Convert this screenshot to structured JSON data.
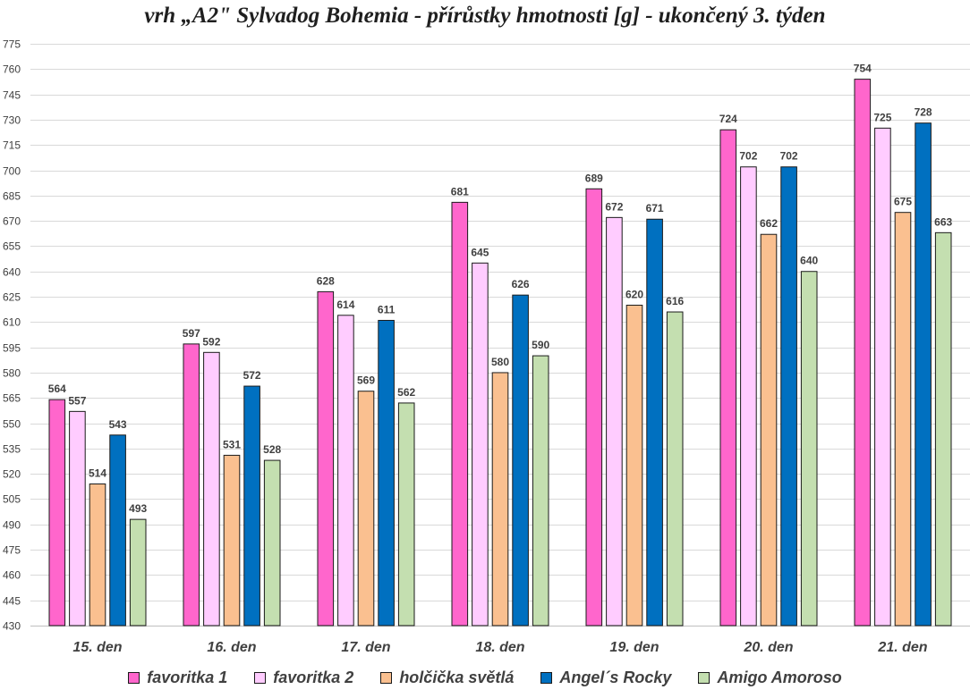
{
  "chart_data": {
    "type": "bar",
    "title": "vrh „A2\" Sylvadog Bohemia - přírůstky hmotnosti [g] - ukončený 3. týden",
    "xlabel": "",
    "ylabel": "",
    "categories": [
      "15. den",
      "16. den",
      "17. den",
      "18. den",
      "19. den",
      "20. den",
      "21. den"
    ],
    "ylim": [
      430,
      775
    ],
    "yticks": [
      430,
      445,
      460,
      475,
      490,
      505,
      520,
      535,
      550,
      565,
      580,
      595,
      610,
      625,
      640,
      655,
      670,
      685,
      700,
      715,
      730,
      745,
      760,
      775
    ],
    "grid": true,
    "legend_position": "bottom",
    "series": [
      {
        "name": "favoritka 1",
        "color": "#ff66cc",
        "values": [
          564,
          597,
          628,
          681,
          689,
          724,
          754
        ]
      },
      {
        "name": "favoritka 2",
        "color": "#ffccff",
        "values": [
          557,
          592,
          614,
          645,
          672,
          702,
          725
        ]
      },
      {
        "name": "holčička světlá",
        "color": "#fac090",
        "values": [
          514,
          531,
          569,
          580,
          620,
          662,
          675
        ]
      },
      {
        "name": "Angel´s Rocky",
        "color": "#0070c0",
        "values": [
          543,
          572,
          611,
          626,
          671,
          702,
          728
        ]
      },
      {
        "name": "Amigo Amoroso",
        "color": "#c4dfb0",
        "values": [
          493,
          528,
          562,
          590,
          616,
          640,
          663
        ]
      }
    ]
  }
}
